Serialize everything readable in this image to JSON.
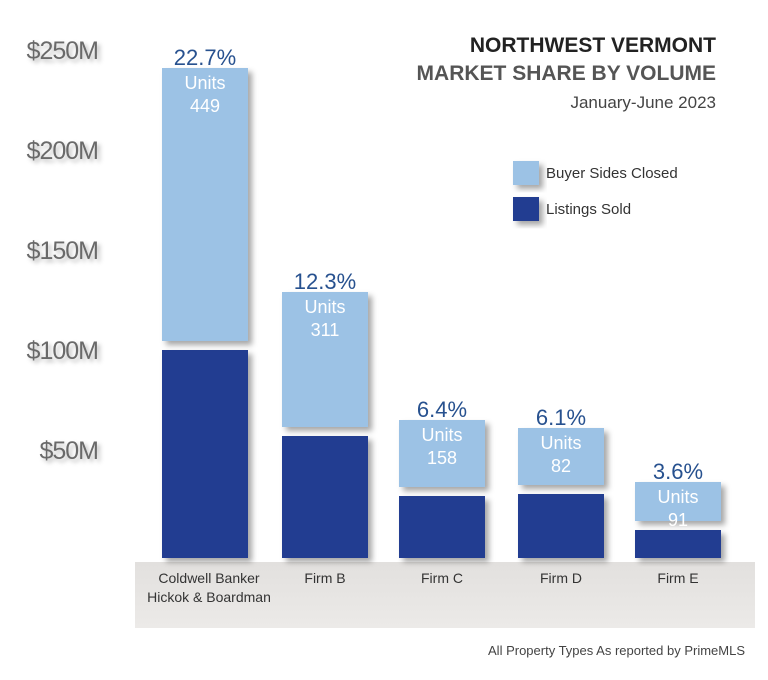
{
  "chart_data": {
    "type": "bar",
    "stacked": true,
    "title": "NORTHWEST VERMONT",
    "subtitle": "MARKET SHARE BY VOLUME",
    "period": "January-June 2023",
    "footnote": "All Property Types As reported by PrimeMLS",
    "categories": [
      "Coldwell Banker\nHickok & Boardman",
      "Firm B",
      "Firm C",
      "Firm D",
      "Firm E"
    ],
    "category_lines": [
      [
        "Coldwell Banker",
        "Hickok & Boardman"
      ],
      [
        "Firm B"
      ],
      [
        "Firm C"
      ],
      [
        "Firm D"
      ],
      [
        "Firm E"
      ]
    ],
    "series": [
      {
        "name": "Listings Sold",
        "color": "#233d91",
        "values": [
          100,
          57,
          27,
          28,
          10
        ]
      },
      {
        "name": "Buyer Sides Closed",
        "color": "#9cc2e5",
        "values": [
          141,
          72,
          38,
          33,
          24
        ]
      }
    ],
    "market_share_labels": [
      "22.7%",
      "12.3%",
      "6.4%",
      "6.1%",
      "3.6%"
    ],
    "units_label": "Units",
    "units": [
      "449",
      "311",
      "158",
      "82",
      "91"
    ],
    "y_ticks": [
      "$50M",
      "$100M",
      "$150M",
      "$200M",
      "$250M"
    ],
    "y_tick_values": [
      50,
      100,
      150,
      200,
      250
    ],
    "ylim": [
      0,
      250
    ],
    "grid": false,
    "legend_placement": "top-right",
    "legend_order": [
      "Buyer Sides Closed",
      "Listings Sold"
    ]
  }
}
